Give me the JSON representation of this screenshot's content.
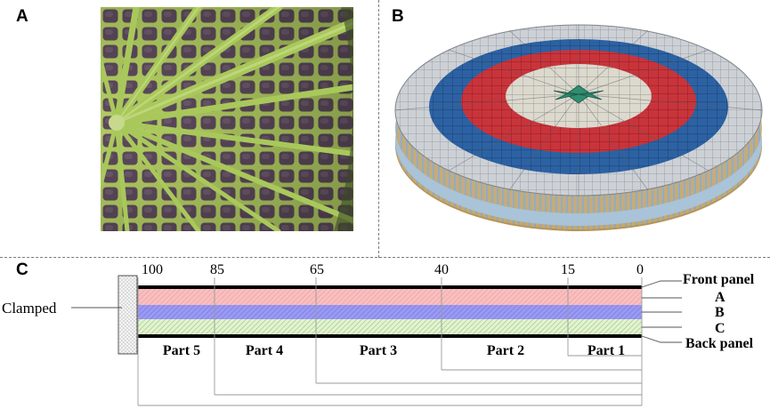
{
  "panels": {
    "a": "A",
    "b": "B",
    "c": "C"
  },
  "diagram_c": {
    "positions": [
      "100",
      "85",
      "65",
      "40",
      "15",
      "0"
    ],
    "parts": [
      "Part 5",
      "Part 4",
      "Part 3",
      "Part 2",
      "Part 1"
    ],
    "clamped_label": "Clamped",
    "layer_labels": {
      "front": "Front panel",
      "a": "A",
      "b": "B",
      "c": "C",
      "back": "Back panel"
    }
  },
  "colors": {
    "leaf_vein": "#a8c85a",
    "leaf_cell": "#5e4a5c",
    "ring_gray": "#c9cdd2",
    "ring_blue": "#2a5fa0",
    "ring_red": "#c8323a",
    "ring_cream": "#d9d6cb",
    "center_green": "#2e8a6e",
    "layer_a": "#f5b5b5",
    "layer_b": "#8f8ff0",
    "layer_c": "#cde8b0"
  }
}
